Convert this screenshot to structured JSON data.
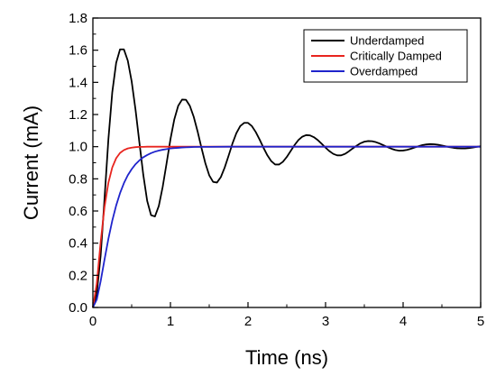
{
  "chart_data": {
    "type": "line",
    "title": "",
    "xlabel": "Time (ns)",
    "ylabel": "Current (mA)",
    "xlim": [
      0,
      5
    ],
    "ylim": [
      0,
      1.8
    ],
    "x_ticks": [
      "0",
      "1",
      "2",
      "3",
      "4",
      "5"
    ],
    "y_ticks": [
      "0.0",
      "0.2",
      "0.4",
      "0.6",
      "0.8",
      "1.0",
      "1.2",
      "1.4",
      "1.6",
      "1.8"
    ],
    "grid": false,
    "legend_position": "top-right",
    "series": [
      {
        "name": "Underdamped",
        "color": "#000000",
        "x": [
          0,
          0.05,
          0.1,
          0.15,
          0.2,
          0.25,
          0.3,
          0.35,
          0.4,
          0.45,
          0.5,
          0.55,
          0.6,
          0.65,
          0.7,
          0.75,
          0.8,
          0.85,
          0.9,
          0.95,
          1.0,
          1.05,
          1.1,
          1.15,
          1.2,
          1.25,
          1.3,
          1.35,
          1.4,
          1.45,
          1.5,
          1.55,
          1.6,
          1.65,
          1.7,
          1.75,
          1.8,
          1.85,
          1.9,
          1.95,
          2.0,
          2.05,
          2.1,
          2.15,
          2.2,
          2.25,
          2.3,
          2.35,
          2.4,
          2.45,
          2.5,
          2.55,
          2.6,
          2.65,
          2.7,
          2.75,
          2.8,
          2.85,
          2.9,
          2.95,
          3.0,
          3.05,
          3.1,
          3.15,
          3.2,
          3.25,
          3.3,
          3.35,
          3.4,
          3.45,
          3.5,
          3.55,
          3.6,
          3.65,
          3.7,
          3.75,
          3.8,
          3.85,
          3.9,
          3.95,
          4.0,
          4.05,
          4.1,
          4.15,
          4.2,
          4.25,
          4.3,
          4.35,
          4.4,
          4.45,
          4.5,
          4.55,
          4.6,
          4.65,
          4.7,
          4.75,
          4.8,
          4.85,
          4.9,
          4.95,
          5.0
        ],
        "values": [
          0,
          0.085,
          0.322,
          0.676,
          1.046,
          1.339,
          1.521,
          1.605,
          1.605,
          1.535,
          1.406,
          1.229,
          1.025,
          0.824,
          0.663,
          0.574,
          0.566,
          0.631,
          0.75,
          0.896,
          1.046,
          1.17,
          1.254,
          1.293,
          1.292,
          1.254,
          1.186,
          1.095,
          0.993,
          0.897,
          0.822,
          0.781,
          0.777,
          0.811,
          0.871,
          0.944,
          1.02,
          1.084,
          1.128,
          1.148,
          1.148,
          1.128,
          1.091,
          1.044,
          0.993,
          0.946,
          0.91,
          0.889,
          0.889,
          0.906,
          0.936,
          0.973,
          1.01,
          1.041,
          1.062,
          1.072,
          1.07,
          1.059,
          1.041,
          1.018,
          0.994,
          0.972,
          0.955,
          0.946,
          0.946,
          0.955,
          0.971,
          0.989,
          1.006,
          1.021,
          1.031,
          1.035,
          1.034,
          1.028,
          1.019,
          1.008,
          0.997,
          0.987,
          0.979,
          0.975,
          0.976,
          0.98,
          0.987,
          0.995,
          1.003,
          1.01,
          1.014,
          1.016,
          1.015,
          1.012,
          1.007,
          1.002,
          0.997,
          0.993,
          0.99,
          0.989,
          0.989,
          0.991,
          0.995,
          0.999,
          1.003
        ]
      },
      {
        "name": "Critically Damped",
        "color": "#e8241e",
        "x": [
          0,
          0.05,
          0.1,
          0.15,
          0.2,
          0.25,
          0.3,
          0.35,
          0.4,
          0.45,
          0.5,
          0.55,
          0.6,
          0.65,
          0.7,
          0.75,
          0.8,
          0.85,
          0.9,
          0.95,
          1.0,
          1.1,
          1.2,
          1.3,
          1.4,
          1.5,
          1.75,
          2.0,
          2.5,
          3.0,
          3.5,
          4.0,
          4.5,
          5.0
        ],
        "values": [
          0,
          0.149,
          0.406,
          0.625,
          0.776,
          0.871,
          0.928,
          0.961,
          0.979,
          0.989,
          0.994,
          0.997,
          0.999,
          0.999,
          1.0,
          1.0,
          1.0,
          1.0,
          1.0,
          1.0,
          1.0,
          1.0,
          1.0,
          1.0,
          1.0,
          1.0,
          1.0,
          1.0,
          1.0,
          1.0,
          1.0,
          1.0,
          1.0,
          1.0
        ]
      },
      {
        "name": "Overdamped",
        "color": "#1f24cc",
        "x": [
          0,
          0.05,
          0.1,
          0.15,
          0.2,
          0.25,
          0.3,
          0.35,
          0.4,
          0.45,
          0.5,
          0.55,
          0.6,
          0.65,
          0.7,
          0.75,
          0.8,
          0.85,
          0.9,
          0.95,
          1.0,
          1.05,
          1.1,
          1.15,
          1.2,
          1.25,
          1.3,
          1.4,
          1.5,
          1.75,
          2.0,
          2.5,
          3.0,
          3.5,
          4.0,
          4.5,
          5.0
        ],
        "values": [
          0,
          0.049,
          0.163,
          0.298,
          0.427,
          0.54,
          0.634,
          0.711,
          0.773,
          0.822,
          0.86,
          0.891,
          0.915,
          0.934,
          0.948,
          0.96,
          0.969,
          0.976,
          0.981,
          0.985,
          0.989,
          0.991,
          0.993,
          0.995,
          0.996,
          0.997,
          0.998,
          0.999,
          0.999,
          1.0,
          1.0,
          1.0,
          1.0,
          1.0,
          1.0,
          1.0,
          1.0
        ]
      }
    ]
  }
}
